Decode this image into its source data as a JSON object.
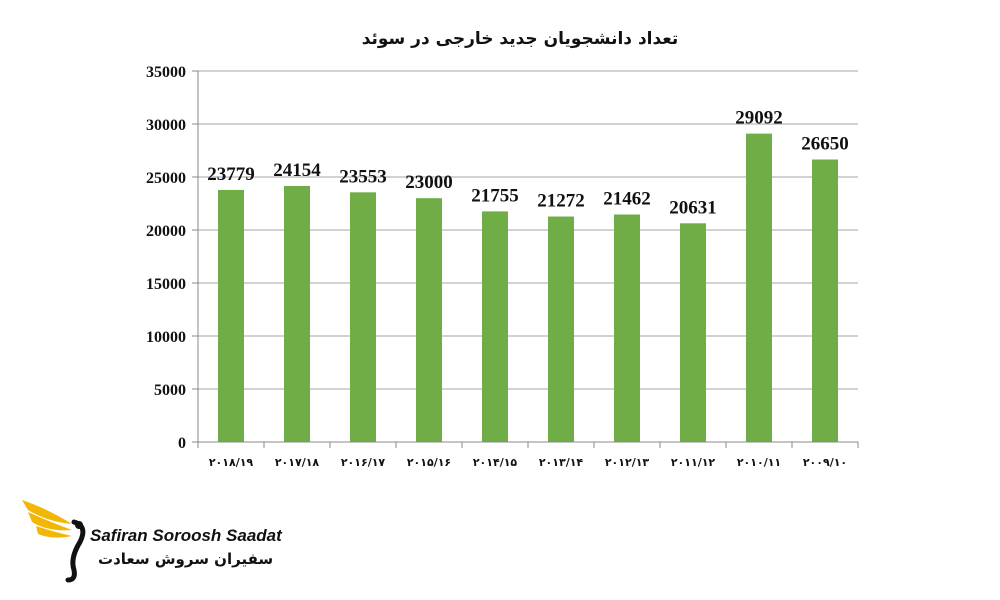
{
  "chart_data": {
    "type": "bar",
    "title": "تعداد دانشجویان جدید خارجی در سوئد",
    "categories": [
      "2018/19",
      "2017/18",
      "2016/17",
      "2015/16",
      "2014/15",
      "2013/14",
      "2012/13",
      "2011/12",
      "2010/11",
      "2009/10"
    ],
    "category_labels": [
      "۲۰۱۸/۱۹",
      "۲۰۱۷/۱۸",
      "۲۰۱۶/۱۷",
      "۲۰۱۵/۱۶",
      "۲۰۱۴/۱۵",
      "۲۰۱۳/۱۴",
      "۲۰۱۲/۱۳",
      "۲۰۱۱/۱۲",
      "۲۰۱۰/۱۱",
      "۲۰۰۹/۱۰"
    ],
    "values": [
      23779,
      24154,
      23553,
      23000,
      21755,
      21272,
      21462,
      20631,
      29092,
      26650
    ],
    "ylim": [
      0,
      35000
    ],
    "yticks": [
      0,
      5000,
      10000,
      15000,
      20000,
      25000,
      30000,
      35000
    ],
    "grid": true,
    "bar_color": "#70ad47",
    "data_labels": true
  },
  "logo": {
    "name_en": "Safiran Soroosh Saadat",
    "name_fa": "سفیران سروش سعادت",
    "accent_color": "#f2b705"
  }
}
